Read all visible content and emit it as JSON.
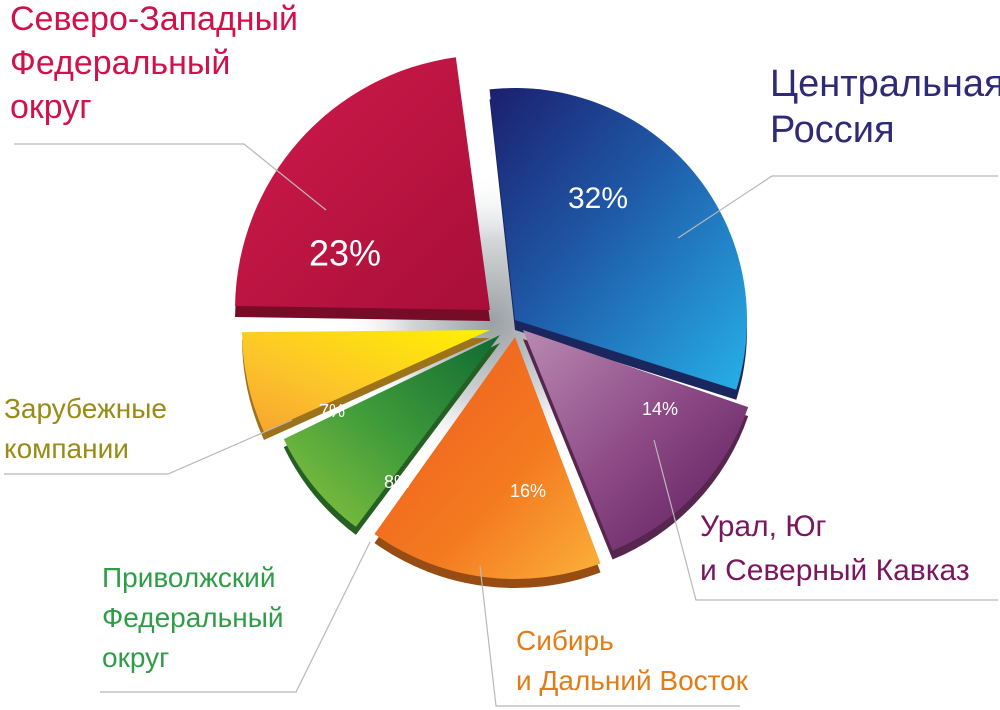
{
  "chart_data": {
    "type": "pie",
    "slices": [
      {
        "label": "Центральная Россия",
        "label_lines": [
          "Центральная",
          "Россия"
        ],
        "value": 32,
        "value_label": "32%",
        "color": "#2a3f9a",
        "label_color": "#2e2a78"
      },
      {
        "label": "Урал, Юг и Северный Кавказ",
        "label_lines": [
          "Урал, Юг",
          "и Северный Кавказ"
        ],
        "value": 14,
        "value_label": "14%",
        "color": "#8a3d80",
        "label_color": "#7a1660"
      },
      {
        "label": "Сибирь и Дальний Восток",
        "label_lines": [
          "Сибирь",
          "и Дальний Восток"
        ],
        "value": 16,
        "value_label": "16%",
        "color": "#f47a20",
        "label_color": "#e27c17"
      },
      {
        "label": "Приволжский Федеральный округ",
        "label_lines": [
          "Приволжский",
          "Федеральный",
          "округ"
        ],
        "value": 8,
        "value_label": "8%",
        "color": "#3e9a3a",
        "label_color": "#2f9d48"
      },
      {
        "label": "Зарубежные компании",
        "label_lines": [
          "Зарубежные",
          "компании"
        ],
        "value": 7,
        "value_label": "7%",
        "color": "#fbb92b",
        "label_color": "#9a8a16"
      },
      {
        "label": "Северо-Западный Федеральный округ",
        "label_lines": [
          "Северо-Западный",
          "Федеральный",
          "округ"
        ],
        "value": 23,
        "value_label": "23%",
        "color": "#c0133f",
        "label_color": "#d0114a"
      }
    ]
  }
}
